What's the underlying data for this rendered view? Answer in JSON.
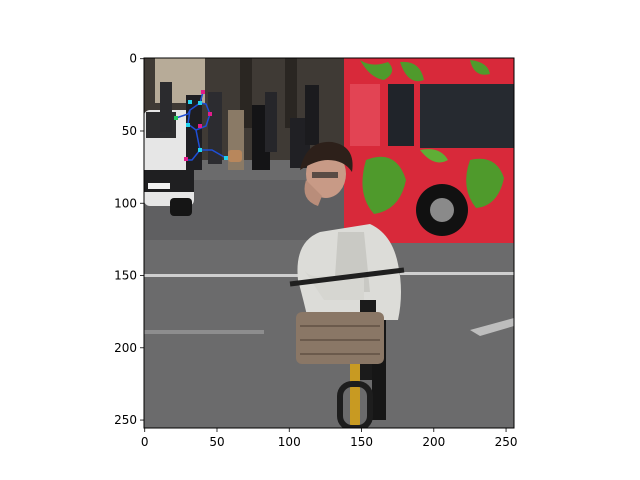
{
  "figure": {
    "kind": "image-with-pose-overlay",
    "scene": "street-cyclist-phone"
  },
  "axes": {
    "x_ticks": [
      "0",
      "50",
      "100",
      "150",
      "200",
      "250"
    ],
    "y_ticks": [
      "0",
      "50",
      "100",
      "150",
      "200",
      "250"
    ],
    "x_tick_values": [
      0,
      50,
      100,
      150,
      200,
      250
    ],
    "y_tick_values": [
      0,
      50,
      100,
      150,
      200,
      250
    ],
    "xlim": [
      -0.5,
      255.5
    ],
    "ylim": [
      255.5,
      -0.5
    ],
    "frame_color": "#000000",
    "background": "#ffffff"
  },
  "colors": {
    "bus_red": "#d8293a",
    "bus_green": "#4f9a2c",
    "road": "#6b6b6c",
    "coat": "#dcdcd8",
    "basket": "#8a7766",
    "bike_yellow": "#c89a22",
    "pose_line": "#1f4fd6",
    "pose_joint_cyan": "#22d3ee",
    "pose_joint_magenta": "#e11d8a",
    "pose_joint_green": "#22c55e"
  }
}
